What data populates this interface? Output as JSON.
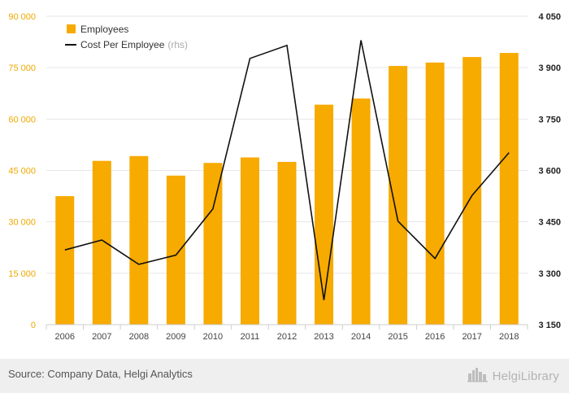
{
  "chart_data": {
    "type": "bar",
    "categories": [
      "2006",
      "2007",
      "2008",
      "2009",
      "2010",
      "2011",
      "2012",
      "2013",
      "2014",
      "2015",
      "2016",
      "2017",
      "2018"
    ],
    "series": [
      {
        "name": "Employees",
        "kind": "bar",
        "axis": "left",
        "values": [
          37500,
          47800,
          49200,
          43500,
          47200,
          48800,
          47500,
          64200,
          66000,
          75500,
          76500,
          78100,
          79300
        ]
      },
      {
        "name": "Cost Per Employee",
        "legend_suffix": "(rhs)",
        "kind": "line",
        "axis": "right",
        "values": [
          3368,
          3397,
          3326,
          3353,
          3488,
          3927,
          3965,
          3222,
          3980,
          3452,
          3343,
          3527,
          3652
        ]
      }
    ],
    "left_axis": {
      "ylim": [
        0,
        90000
      ],
      "ticks": [
        0,
        15000,
        30000,
        45000,
        60000,
        75000,
        90000
      ],
      "tick_labels": [
        "0",
        "15 000",
        "30 000",
        "45 000",
        "60 000",
        "75 000",
        "90 000"
      ]
    },
    "right_axis": {
      "ylim": [
        3150,
        4050
      ],
      "ticks": [
        3150,
        3300,
        3450,
        3600,
        3750,
        3900,
        4050
      ],
      "tick_labels": [
        "3 150",
        "3 300",
        "3 450",
        "3 600",
        "3 750",
        "3 900",
        "4 050"
      ]
    },
    "grid": true,
    "legend_position": "top-left"
  },
  "colors": {
    "bar": "#f7aa00",
    "line": "#111111",
    "left_axis_text": "#f0a800",
    "right_axis_text": "#222222",
    "grid": "#e6e6e6",
    "muted": "#aaaaaa"
  },
  "footer": {
    "source": "Source: Company Data, Helgi Analytics",
    "brand": "HelgiLibrary",
    "brand_icon": "city-skyline-icon"
  }
}
